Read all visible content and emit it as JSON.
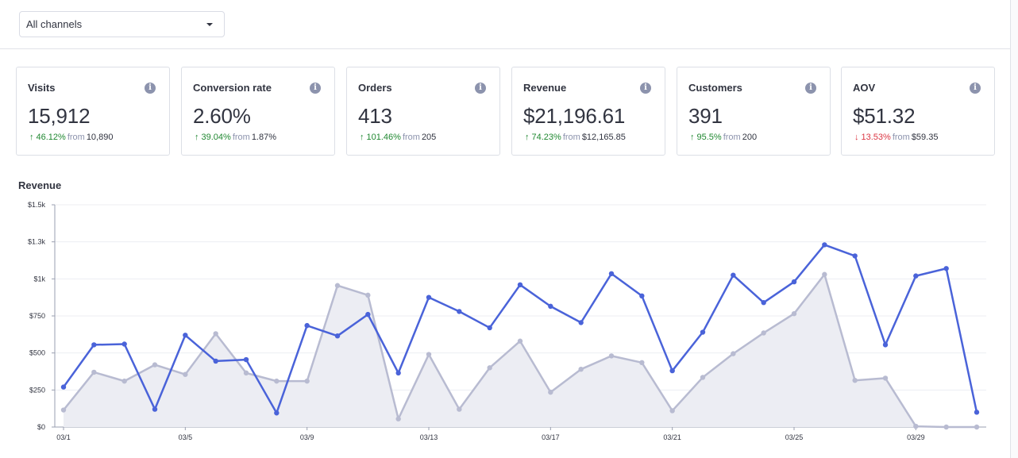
{
  "filter": {
    "selected": "All channels"
  },
  "cards": [
    {
      "title": "Visits",
      "value": "15,912",
      "direction": "up",
      "change": "46.12%",
      "from_label": "from",
      "previous": "10,890"
    },
    {
      "title": "Conversion rate",
      "value": "2.60%",
      "direction": "up",
      "change": "39.04%",
      "from_label": "from",
      "previous": "1.87%"
    },
    {
      "title": "Orders",
      "value": "413",
      "direction": "up",
      "change": "101.46%",
      "from_label": "from",
      "previous": "205"
    },
    {
      "title": "Revenue",
      "value": "$21,196.61",
      "direction": "up",
      "change": "74.23%",
      "from_label": "from",
      "previous": "$12,165.85"
    },
    {
      "title": "Customers",
      "value": "391",
      "direction": "up",
      "change": "95.5%",
      "from_label": "from",
      "previous": "200"
    },
    {
      "title": "AOV",
      "value": "$51.32",
      "direction": "down",
      "change": "13.53%",
      "from_label": "from",
      "previous": "$59.35"
    }
  ],
  "icons": {
    "info": "info-icon",
    "up": "arrow-up-icon",
    "down": "arrow-down-icon",
    "caret": "chevron-down-icon"
  },
  "colors": {
    "current_series": "#4a63d9",
    "previous_series": "#b8bbd1",
    "previous_fill": "#ecedf3",
    "up": "#208831",
    "down": "#db3643"
  },
  "chart_data": {
    "type": "line",
    "title": "Revenue",
    "ylim": [
      0,
      1500
    ],
    "yticks": [
      0,
      250,
      500,
      750,
      1000,
      1250,
      1500
    ],
    "ytick_labels": [
      "$0",
      "$250",
      "$500",
      "$750",
      "$1k",
      "$1.3k",
      "$1.5k"
    ],
    "xtick_labels": [
      "03/1",
      "03/5",
      "03/9",
      "03/13",
      "03/17",
      "03/21",
      "03/25",
      "03/29"
    ],
    "x": [
      "03/1",
      "03/2",
      "03/3",
      "03/4",
      "03/5",
      "03/6",
      "03/7",
      "03/8",
      "03/9",
      "03/10",
      "03/11",
      "03/12",
      "03/13",
      "03/14",
      "03/15",
      "03/16",
      "03/17",
      "03/18",
      "03/19",
      "03/20",
      "03/21",
      "03/22",
      "03/23",
      "03/24",
      "03/25",
      "03/26",
      "03/27",
      "03/28",
      "03/29",
      "03/30",
      "03/31"
    ],
    "grid": true,
    "series": [
      {
        "style": "line",
        "values": [
          270,
          555,
          560,
          120,
          620,
          445,
          455,
          95,
          685,
          615,
          760,
          365,
          875,
          780,
          670,
          960,
          815,
          705,
          1035,
          885,
          380,
          640,
          1025,
          840,
          980,
          1230,
          1155,
          555,
          1020,
          1070,
          100
        ]
      },
      {
        "style": "area",
        "values": [
          115,
          370,
          310,
          420,
          355,
          630,
          365,
          310,
          310,
          955,
          890,
          55,
          490,
          120,
          400,
          580,
          235,
          390,
          480,
          435,
          110,
          335,
          495,
          635,
          765,
          1030,
          315,
          330,
          5,
          0,
          0
        ]
      }
    ]
  }
}
